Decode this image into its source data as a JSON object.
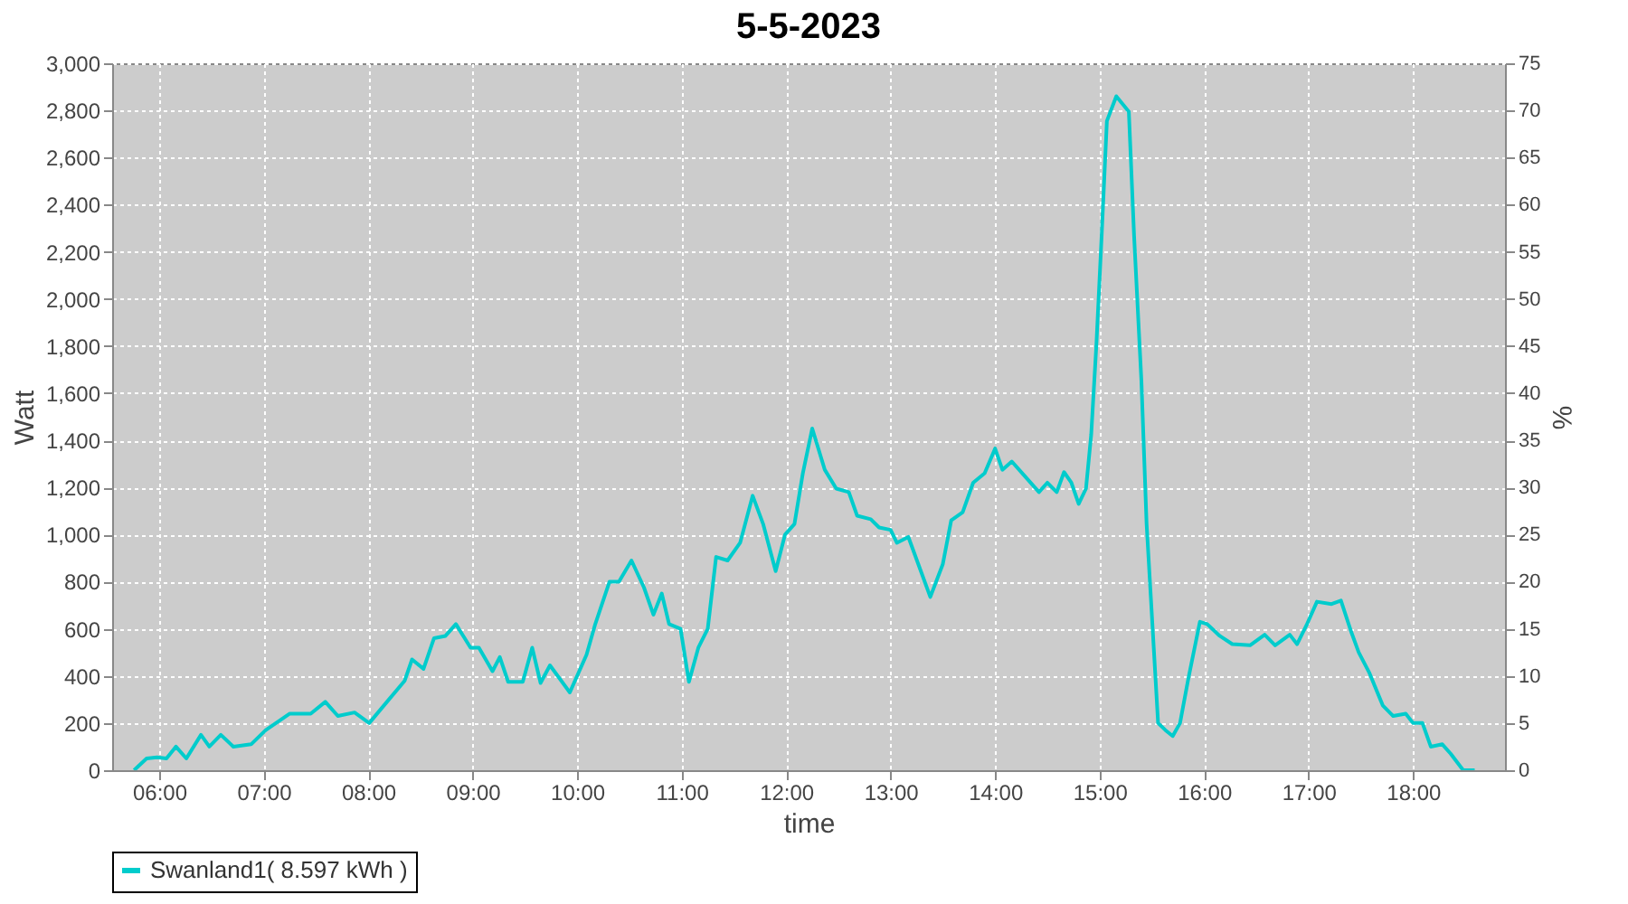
{
  "chart_data": {
    "type": "line",
    "title": "5-5-2023",
    "xlabel": "time",
    "ylabel": "Watt",
    "y2label": "%",
    "xlim": [
      5.55,
      18.88
    ],
    "xticks": [
      {
        "value": 6,
        "label": "06:00"
      },
      {
        "value": 7,
        "label": "07:00"
      },
      {
        "value": 8,
        "label": "08:00"
      },
      {
        "value": 9,
        "label": "09:00"
      },
      {
        "value": 10,
        "label": "10:00"
      },
      {
        "value": 11,
        "label": "11:00"
      },
      {
        "value": 12,
        "label": "12:00"
      },
      {
        "value": 13,
        "label": "13:00"
      },
      {
        "value": 14,
        "label": "14:00"
      },
      {
        "value": 15,
        "label": "15:00"
      },
      {
        "value": 16,
        "label": "16:00"
      },
      {
        "value": 17,
        "label": "17:00"
      },
      {
        "value": 18,
        "label": "18:00"
      }
    ],
    "ylim": [
      0,
      3000
    ],
    "yticks": [
      0,
      200,
      400,
      600,
      800,
      {
        "value": 1000,
        "label": "1,000"
      },
      {
        "value": 1200,
        "label": "1,200"
      },
      {
        "value": 1400,
        "label": "1,400"
      },
      {
        "value": 1600,
        "label": "1,600"
      },
      {
        "value": 1800,
        "label": "1,800"
      },
      {
        "value": 2000,
        "label": "2,000"
      },
      {
        "value": 2200,
        "label": "2,200"
      },
      {
        "value": 2400,
        "label": "2,400"
      },
      {
        "value": 2600,
        "label": "2,600"
      },
      {
        "value": 2800,
        "label": "2,800"
      },
      {
        "value": 3000,
        "label": "3,000"
      }
    ],
    "y2lim": [
      0,
      75
    ],
    "y2ticks": [
      0,
      5,
      10,
      15,
      20,
      25,
      30,
      35,
      40,
      45,
      50,
      55,
      60,
      65,
      70,
      75
    ],
    "grid": true,
    "legend": "bottom",
    "x": [
      5.76,
      5.88,
      5.98,
      6.07,
      6.16,
      6.26,
      6.4,
      6.48,
      6.59,
      6.71,
      6.88,
      7.02,
      7.25,
      7.45,
      7.59,
      7.71,
      7.87,
      8.01,
      8.18,
      8.35,
      8.42,
      8.53,
      8.63,
      8.74,
      8.84,
      8.98,
      9.06,
      9.19,
      9.26,
      9.34,
      9.48,
      9.57,
      9.65,
      9.74,
      9.93,
      10.09,
      10.17,
      10.31,
      10.4,
      10.52,
      10.64,
      10.73,
      10.81,
      10.88,
      10.99,
      11.07,
      11.16,
      11.25,
      11.33,
      11.44,
      11.56,
      11.68,
      11.78,
      11.9,
      11.99,
      12.08,
      12.16,
      12.25,
      12.37,
      12.48,
      12.6,
      12.68,
      12.81,
      12.89,
      13.0,
      13.06,
      13.17,
      13.38,
      13.5,
      13.58,
      13.69,
      13.79,
      13.9,
      14.0,
      14.07,
      14.16,
      14.28,
      14.42,
      14.5,
      14.59,
      14.66,
      14.73,
      14.8,
      14.87,
      14.92,
      14.97,
      15.02,
      15.07,
      15.16,
      15.28,
      15.33,
      15.4,
      15.45,
      15.51,
      15.56,
      15.63,
      15.7,
      15.77,
      15.85,
      15.96,
      16.03,
      16.15,
      16.27,
      16.44,
      16.58,
      16.68,
      16.82,
      16.89,
      16.98,
      17.08,
      17.22,
      17.31,
      17.41,
      17.48,
      17.58,
      17.71,
      17.81,
      17.93,
      18.0,
      18.09,
      18.17,
      18.28,
      18.36,
      18.48,
      18.59
    ],
    "series": [
      {
        "name": "Swanland1( 8.597 kWh )",
        "color": "#00cccc",
        "values": [
          0,
          50,
          55,
          50,
          100,
          50,
          150,
          100,
          150,
          100,
          110,
          170,
          240,
          240,
          290,
          230,
          245,
          200,
          290,
          380,
          470,
          430,
          560,
          570,
          620,
          520,
          520,
          420,
          480,
          375,
          375,
          520,
          370,
          445,
          330,
          490,
          615,
          800,
          800,
          890,
          775,
          660,
          750,
          620,
          600,
          375,
          520,
          600,
          905,
          890,
          965,
          1165,
          1045,
          845,
          1000,
          1045,
          1260,
          1450,
          1275,
          1195,
          1180,
          1080,
          1065,
          1030,
          1020,
          965,
          990,
          735,
          875,
          1060,
          1095,
          1220,
          1260,
          1365,
          1275,
          1310,
          1250,
          1180,
          1220,
          1180,
          1265,
          1220,
          1130,
          1195,
          1425,
          1810,
          2270,
          2755,
          2860,
          2795,
          2270,
          1655,
          1045,
          585,
          200,
          170,
          145,
          200,
          390,
          630,
          620,
          570,
          535,
          530,
          575,
          530,
          575,
          535,
          615,
          715,
          705,
          720,
          585,
          500,
          415,
          275,
          230,
          240,
          200,
          200,
          100,
          110,
          70,
          0,
          0
        ]
      }
    ]
  }
}
